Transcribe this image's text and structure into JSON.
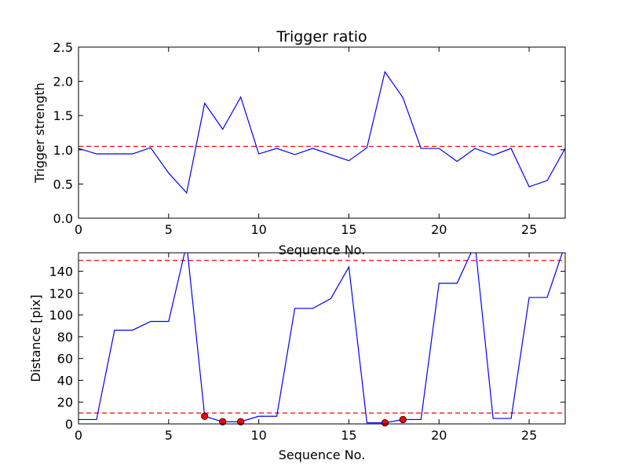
{
  "chart_data": [
    {
      "type": "line",
      "title": "Trigger ratio",
      "xlabel": "Sequence No.",
      "ylabel": "Trigger strength",
      "xlim": [
        0,
        27
      ],
      "ylim": [
        0,
        2.5
      ],
      "xticks": [
        0,
        5,
        10,
        15,
        20,
        25
      ],
      "yticks": [
        0.0,
        0.5,
        1.0,
        1.5,
        2.0,
        2.5
      ],
      "ytick_labels": [
        "0.0",
        "0.5",
        "1.0",
        "1.5",
        "2.0",
        "2.5"
      ],
      "grid": false,
      "line_color": "#0000ff",
      "threshold_color": "#ff0000",
      "thresholds": [
        1.05
      ],
      "series": [
        {
          "x": [
            0,
            1,
            2,
            3,
            4,
            5,
            6,
            7,
            8,
            9,
            10,
            11,
            12,
            13,
            14,
            15,
            16,
            17,
            18,
            19,
            20,
            21,
            22,
            23,
            24,
            25,
            26,
            27
          ],
          "values": [
            1.02,
            0.94,
            0.94,
            0.94,
            1.03,
            0.66,
            0.37,
            1.68,
            1.3,
            1.77,
            0.94,
            1.02,
            0.93,
            1.02,
            0.93,
            0.84,
            1.03,
            2.14,
            1.76,
            1.02,
            1.02,
            0.83,
            1.02,
            0.92,
            1.02,
            0.46,
            0.55,
            1.02
          ]
        }
      ]
    },
    {
      "type": "line",
      "title": "",
      "xlabel": "Sequence No.",
      "ylabel": "Distance [pix]",
      "xlim": [
        0,
        27
      ],
      "ylim": [
        0,
        157
      ],
      "xticks": [
        0,
        5,
        10,
        15,
        20,
        25
      ],
      "yticks": [
        0,
        20,
        40,
        60,
        80,
        100,
        120,
        140
      ],
      "grid": false,
      "line_color": "#0000ff",
      "threshold_color": "#ff0000",
      "marker_color": "#ff0000",
      "thresholds": [
        10,
        150
      ],
      "series": [
        {
          "x": [
            0,
            1,
            2,
            3,
            4,
            5,
            6,
            7,
            8,
            9,
            10,
            11,
            12,
            13,
            14,
            15,
            16,
            17,
            18,
            19,
            20,
            21,
            22,
            23,
            24,
            25,
            26,
            27
          ],
          "values": [
            4,
            4,
            86,
            86,
            94,
            94,
            165,
            7,
            2,
            2,
            7,
            7,
            106,
            106,
            115,
            144,
            1,
            1,
            4,
            4,
            129,
            129,
            165,
            5,
            5,
            116,
            116,
            165
          ]
        }
      ],
      "markers": {
        "x": [
          7,
          8,
          9,
          17,
          18
        ],
        "values": [
          7,
          2,
          2,
          1,
          4
        ]
      }
    }
  ]
}
